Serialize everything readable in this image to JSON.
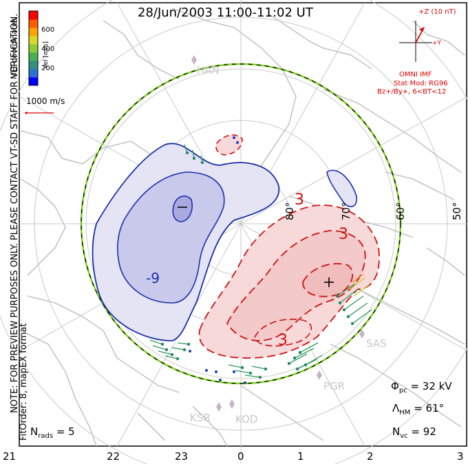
{
  "title": "28/Jun/2003 11:00-11:02 UT",
  "side_note": "NOTE: FOR PREVIEW PURPOSES ONLY. PLEASE CONTACT VT-SD STAFF FOR VERIFICATION.",
  "fit_order": "FitOrder: 8, mapEX format",
  "mlt_label": "MLT coordinates",
  "colorbar": {
    "label": "Vel [m/s]",
    "ticks": [
      "600",
      "400",
      "200"
    ],
    "colors": [
      "#0000ff",
      "#2e6fd3",
      "#2f8f80",
      "#48b050",
      "#8ccc3a",
      "#d8d82a",
      "#ffa500",
      "#ff5a00",
      "#ff0000"
    ]
  },
  "vector_scale": "1000 m/s",
  "imf": {
    "z_label": "+Z (10 nT)",
    "y_label": "+Y",
    "source": "OMNI IMF",
    "model": "Stat Mod: RG96",
    "condition": "Bz+/By+, 6<BT<12"
  },
  "latitude_labels": [
    "80°",
    "70°",
    "60°",
    "50°"
  ],
  "stations": [
    "HAN",
    "SAS",
    "PGR",
    "KSR",
    "KOD"
  ],
  "contours": {
    "negative": "-9",
    "positive_a": "3",
    "positive_b": "3",
    "positive_c": "3"
  },
  "stats": {
    "phi_symbol": "Φ",
    "phi_sub": "pc",
    "phi_value": "= 32 kV",
    "lambda_symbol": "Λ",
    "lambda_sub": "HM",
    "lambda_value": "= 61°",
    "nvc_symbol": "N",
    "nvc_sub": "vc",
    "nvc_value": "= 92",
    "nrads_symbol": "N",
    "nrads_sub": "rads",
    "nrads_value": "= 5"
  },
  "mlt_ticks": [
    "21",
    "22",
    "23",
    "0",
    "1",
    "2",
    "3"
  ]
}
